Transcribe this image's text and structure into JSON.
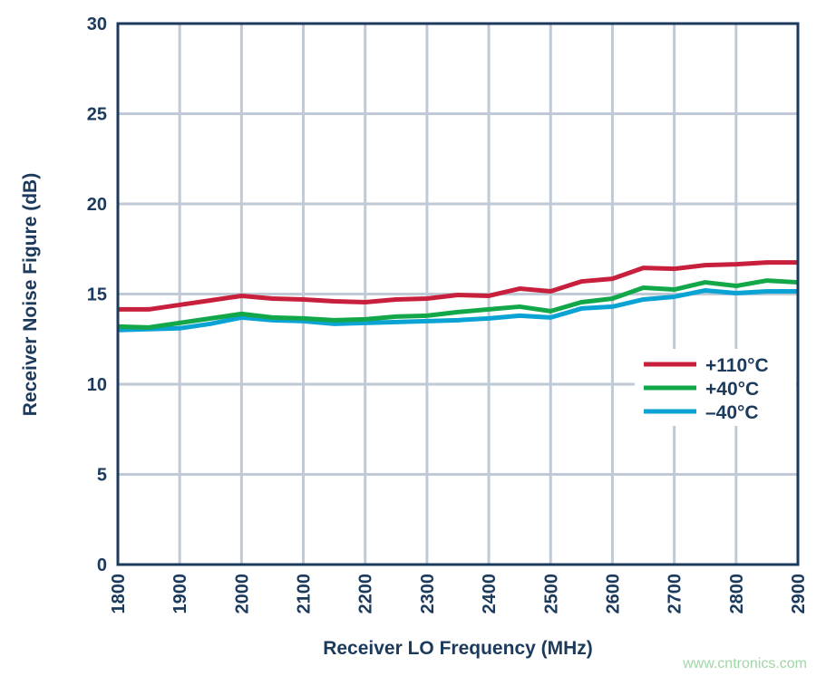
{
  "chart_data": {
    "type": "line",
    "xlabel": "Receiver LO Frequency (MHz)",
    "ylabel": "Receiver Noise Figure (dB)",
    "xlim": [
      1800,
      2900
    ],
    "ylim": [
      0,
      30
    ],
    "xticks": [
      1800,
      1900,
      2000,
      2100,
      2200,
      2300,
      2400,
      2500,
      2600,
      2700,
      2800,
      2900
    ],
    "yticks": [
      0,
      5,
      10,
      15,
      20,
      25,
      30
    ],
    "grid": true,
    "legend_placement": "right",
    "x": [
      1800,
      1850,
      1900,
      1950,
      2000,
      2050,
      2100,
      2150,
      2200,
      2250,
      2300,
      2350,
      2400,
      2450,
      2500,
      2550,
      2600,
      2650,
      2700,
      2750,
      2800,
      2850,
      2900
    ],
    "series": [
      {
        "name": "+110°C",
        "color": "#c8203c",
        "values": [
          14.15,
          14.15,
          14.4,
          14.65,
          14.9,
          14.75,
          14.7,
          14.6,
          14.55,
          14.7,
          14.75,
          14.95,
          14.9,
          15.3,
          15.15,
          15.7,
          15.85,
          16.45,
          16.4,
          16.6,
          16.65,
          16.75,
          16.75
        ]
      },
      {
        "name": "+40°C",
        "color": "#12a84a",
        "values": [
          13.2,
          13.15,
          13.4,
          13.65,
          13.9,
          13.7,
          13.65,
          13.55,
          13.6,
          13.75,
          13.8,
          14.0,
          14.15,
          14.3,
          14.05,
          14.55,
          14.75,
          15.35,
          15.25,
          15.65,
          15.45,
          15.75,
          15.65
        ]
      },
      {
        "name": "–40°C",
        "color": "#0aa3d3",
        "values": [
          13.0,
          13.05,
          13.1,
          13.35,
          13.7,
          13.55,
          13.5,
          13.35,
          13.4,
          13.45,
          13.5,
          13.55,
          13.65,
          13.8,
          13.7,
          14.2,
          14.3,
          14.7,
          14.85,
          15.2,
          15.05,
          15.15,
          15.15
        ]
      }
    ]
  },
  "watermark": "www.cntronics.com"
}
